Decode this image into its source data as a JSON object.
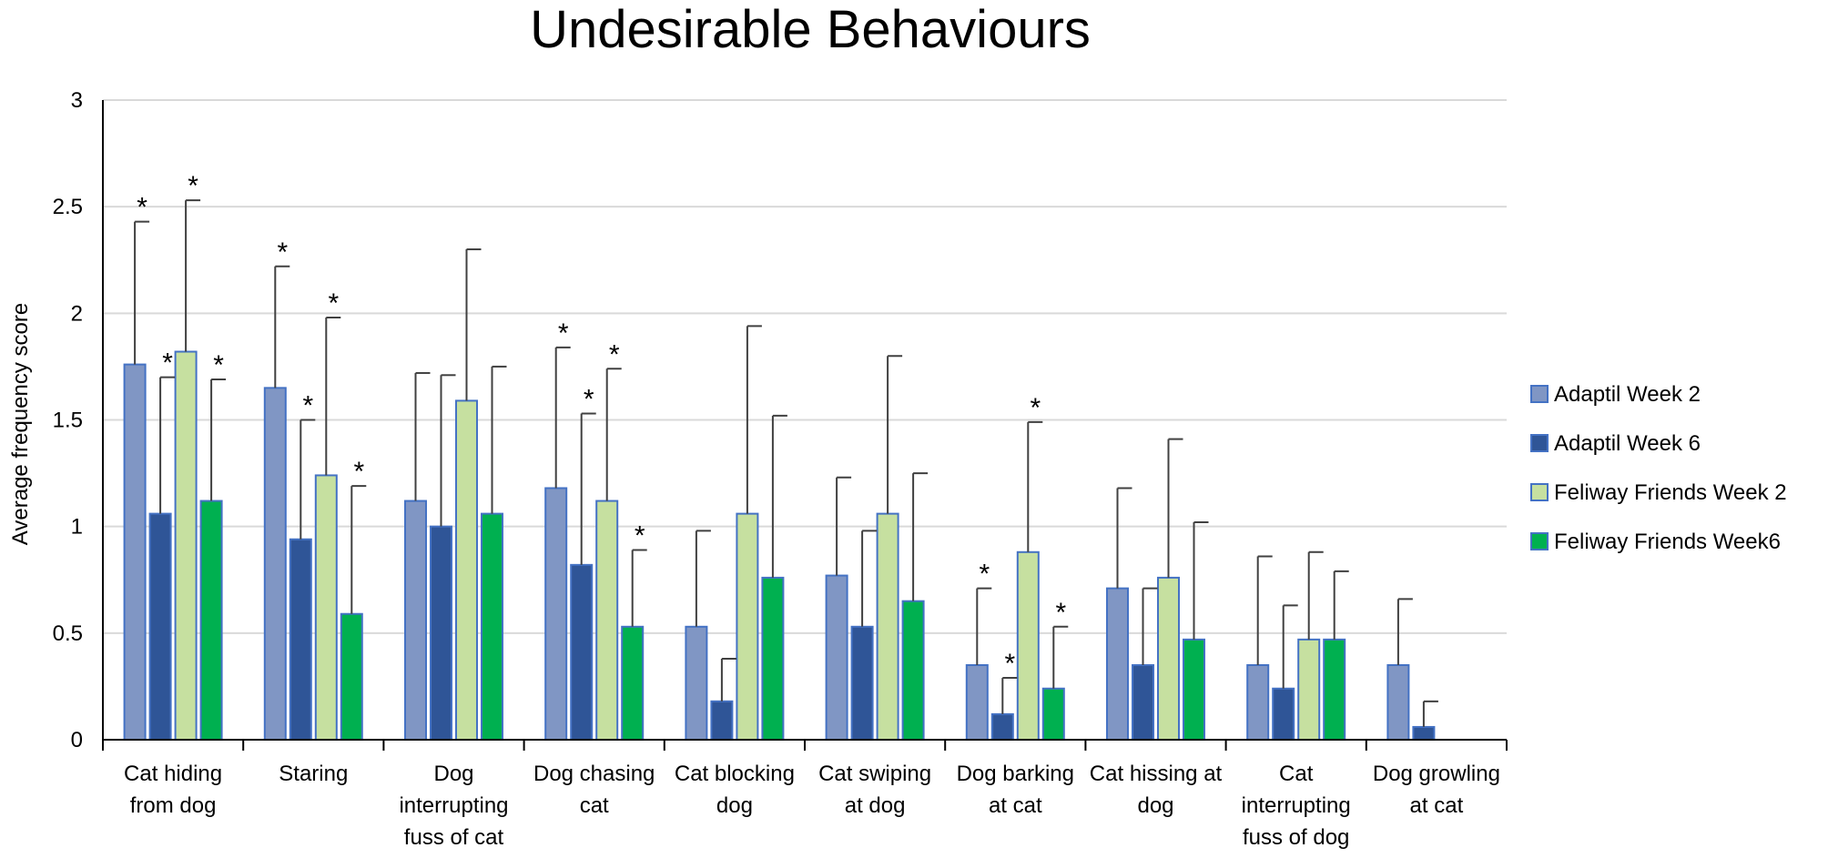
{
  "chart_data": {
    "type": "bar",
    "title": "Undesirable Behaviours",
    "ylabel": "Average frequency score",
    "xlabel": "",
    "ylim": [
      0,
      3
    ],
    "yticks": [
      "0",
      "0.5",
      "1",
      "1.5",
      "2",
      "2.5",
      "3"
    ],
    "grid": true,
    "legend_position": "right",
    "categories": [
      [
        "Cat hiding",
        "from dog"
      ],
      [
        "Staring"
      ],
      [
        "Dog",
        "interrupting",
        "fuss of cat"
      ],
      [
        "Dog chasing",
        "cat"
      ],
      [
        "Cat blocking",
        "dog"
      ],
      [
        "Cat swiping",
        "at dog"
      ],
      [
        "Dog barking",
        "at cat"
      ],
      [
        "Cat hissing at",
        "dog"
      ],
      [
        "Cat",
        "interrupting",
        "fuss of dog"
      ],
      [
        "Dog growling",
        "at cat"
      ]
    ],
    "series": [
      {
        "name": "Adaptil Week 2",
        "color": "#8096c4",
        "values": [
          1.76,
          1.65,
          1.12,
          1.18,
          0.53,
          0.77,
          0.35,
          0.71,
          0.35,
          0.35
        ],
        "errors": [
          0.67,
          0.57,
          0.6,
          0.66,
          0.45,
          0.46,
          0.36,
          0.47,
          0.51,
          0.31
        ],
        "significant": [
          true,
          true,
          false,
          true,
          false,
          false,
          true,
          false,
          false,
          false
        ]
      },
      {
        "name": "Adaptil Week 6",
        "color": "#2f5597",
        "values": [
          1.06,
          0.94,
          1.0,
          0.82,
          0.18,
          0.53,
          0.12,
          0.35,
          0.24,
          0.06
        ],
        "errors": [
          0.64,
          0.56,
          0.71,
          0.71,
          0.2,
          0.45,
          0.17,
          0.36,
          0.39,
          0.12
        ],
        "significant": [
          true,
          true,
          false,
          true,
          false,
          false,
          true,
          false,
          false,
          false
        ]
      },
      {
        "name": "Feliway Friends Week 2",
        "color": "#c6e0a0",
        "values": [
          1.82,
          1.24,
          1.59,
          1.12,
          1.06,
          1.06,
          0.88,
          0.76,
          0.47,
          null
        ],
        "errors": [
          0.71,
          0.74,
          0.71,
          0.62,
          0.88,
          0.74,
          0.61,
          0.65,
          0.41,
          null
        ],
        "significant": [
          true,
          true,
          false,
          true,
          false,
          false,
          true,
          false,
          false,
          false
        ]
      },
      {
        "name": "Feliway Friends Week6",
        "color": "#00b050",
        "values": [
          1.12,
          0.59,
          1.06,
          0.53,
          0.76,
          0.65,
          0.24,
          0.47,
          0.47,
          null
        ],
        "errors": [
          0.57,
          0.6,
          0.69,
          0.36,
          0.76,
          0.6,
          0.29,
          0.55,
          0.32,
          null
        ],
        "significant": [
          true,
          true,
          false,
          true,
          false,
          false,
          true,
          false,
          false,
          false
        ]
      }
    ],
    "significance_marker": "*"
  }
}
